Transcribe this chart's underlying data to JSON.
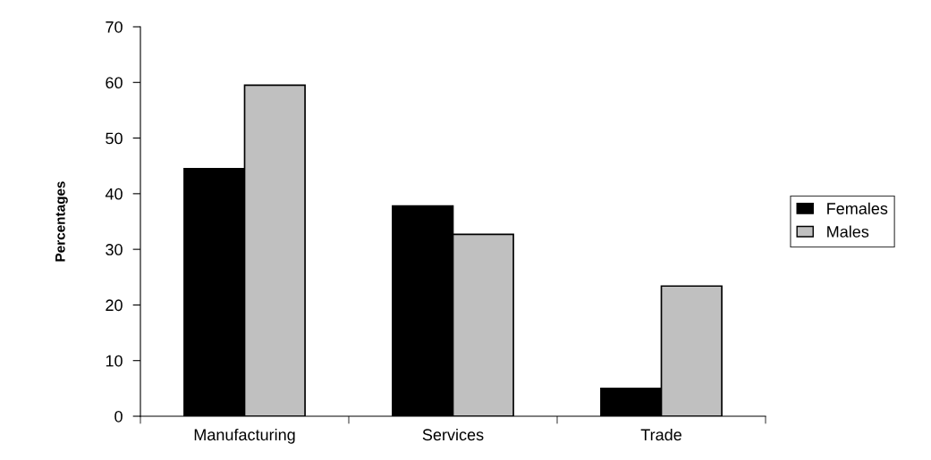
{
  "chart_data": {
    "type": "bar",
    "ylabel": "Percentages",
    "categories": [
      "Manufacturing",
      "Services",
      "Trade"
    ],
    "series": [
      {
        "name": "Females",
        "color": "#000000",
        "values": [
          44.5,
          37.8,
          5.0
        ]
      },
      {
        "name": "Males",
        "color": "#c0c0c0",
        "values": [
          59.5,
          32.7,
          23.4
        ]
      }
    ],
    "ylim": [
      0,
      70
    ],
    "yticks": [
      0,
      10,
      20,
      30,
      40,
      50,
      60,
      70
    ],
    "grid": false,
    "legend": "right"
  }
}
